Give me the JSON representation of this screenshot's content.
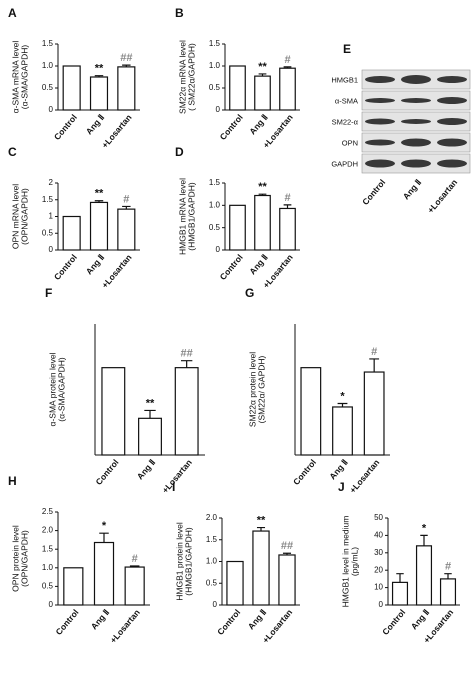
{
  "chart_data": [
    {
      "type": "bar",
      "panel": "A",
      "ylabel": [
        "α-SMA mRNA level",
        "(α-SMA/GAPDH)"
      ],
      "categories": [
        "Control",
        "Ang Ⅱ",
        "+Losartan"
      ],
      "values": [
        1.0,
        0.75,
        0.98
      ],
      "errors": [
        null,
        0.03,
        0.04
      ],
      "significance": [
        null,
        "**",
        "##"
      ],
      "significance_colors": [
        null,
        "#111111",
        "#888888"
      ],
      "color": "#ffffff",
      "ylim": [
        0,
        1.5
      ],
      "yticks": [
        0,
        0.5,
        {
          "value": 1,
          "label": "1.0"
        },
        1.5
      ]
    },
    {
      "type": "bar",
      "panel": "B",
      "ylabel": [
        "SM22α mRNA level",
        "( SM22α/GAPDH)"
      ],
      "categories": [
        "Control",
        "Ang Ⅱ",
        "+Losartan"
      ],
      "values": [
        1.0,
        0.77,
        0.95
      ],
      "errors": [
        null,
        0.05,
        0.03
      ],
      "significance": [
        null,
        "**",
        "#"
      ],
      "significance_colors": [
        null,
        "#111111",
        "#888888"
      ],
      "color": "#ffffff",
      "ylim": [
        0,
        1.5
      ],
      "yticks": [
        0,
        0.5,
        {
          "value": 1,
          "label": "1.0"
        },
        1.5
      ]
    },
    {
      "type": "bar",
      "panel": "C",
      "ylabel": [
        "OPN mRNA level",
        "(OPN/GAPDH)"
      ],
      "categories": [
        "Control",
        "Ang Ⅱ",
        "+Losartan"
      ],
      "values": [
        1.0,
        1.42,
        1.22
      ],
      "errors": [
        null,
        0.05,
        0.08
      ],
      "significance": [
        null,
        "**",
        "#"
      ],
      "significance_colors": [
        null,
        "#111111",
        "#888888"
      ],
      "color": "#ffffff",
      "ylim": [
        0,
        2
      ],
      "yticks": [
        0,
        0.5,
        1,
        1.5,
        2
      ]
    },
    {
      "type": "bar",
      "panel": "D",
      "ylabel": [
        "HMGB1 mRNA level",
        "(HMGB1/GAPDH)"
      ],
      "categories": [
        "Control",
        "Ang Ⅱ",
        "+Losartan"
      ],
      "values": [
        1.0,
        1.22,
        0.93
      ],
      "errors": [
        null,
        0.03,
        0.08
      ],
      "significance": [
        null,
        "**",
        "#"
      ],
      "significance_colors": [
        null,
        "#111111",
        "#888888"
      ],
      "color": "#ffffff",
      "ylim": [
        0,
        1.5
      ],
      "yticks": [
        0,
        0.5,
        {
          "value": 1,
          "label": "1.0"
        },
        1.5
      ]
    },
    {
      "type": "bar",
      "panel": "F",
      "ylabel": [
        "α-SMA protein level",
        "(α-SMA/GAPDH)"
      ],
      "categories": [
        "Control",
        "Ang Ⅱ",
        "+Losartan"
      ],
      "values": [
        1.0,
        0.42,
        1.0
      ],
      "errors": [
        null,
        0.09,
        0.08
      ],
      "significance": [
        null,
        "**",
        "##"
      ],
      "significance_colors": [
        null,
        "#111111",
        "#888888"
      ],
      "color": "#ffffff",
      "ylim": [
        0,
        1.5
      ]
    },
    {
      "type": "bar",
      "panel": "G",
      "ylabel": [
        "SM22α protein level",
        "(SM22α/ GAPDH)"
      ],
      "categories": [
        "Control",
        "Ang Ⅱ",
        "+Losartan"
      ],
      "values": [
        1.0,
        0.55,
        0.95
      ],
      "errors": [
        null,
        0.04,
        0.15
      ],
      "significance": [
        null,
        "*",
        "#"
      ],
      "significance_colors": [
        null,
        "#111111",
        "#888888"
      ],
      "color": "#ffffff",
      "ylim": [
        0,
        1.5
      ]
    },
    {
      "type": "bar",
      "panel": "H",
      "ylabel": [
        "OPN protein level",
        "(OPN/GAPDH)"
      ],
      "categories": [
        "Control",
        "Ang Ⅱ",
        "+Losartan"
      ],
      "values": [
        1.0,
        1.68,
        1.02
      ],
      "errors": [
        null,
        0.25,
        0.03
      ],
      "significance": [
        null,
        "*",
        "#"
      ],
      "significance_colors": [
        null,
        "#111111",
        "#888888"
      ],
      "color": "#ffffff",
      "ylim": [
        0,
        2.5
      ],
      "yticks": [
        0,
        0.5,
        {
          "value": 1,
          "label": "1.0"
        },
        1.5,
        {
          "value": 2,
          "label": "2.0"
        },
        2.5
      ]
    },
    {
      "type": "bar",
      "panel": "I",
      "ylabel": [
        "HMGB1 protein level",
        "(HMGB1/GAPDH)"
      ],
      "categories": [
        "Control",
        "Ang Ⅱ",
        "+Losartan"
      ],
      "values": [
        1.0,
        1.7,
        1.15
      ],
      "errors": [
        null,
        0.08,
        0.04
      ],
      "significance": [
        null,
        "**",
        "##"
      ],
      "significance_colors": [
        null,
        "#111111",
        "#888888"
      ],
      "color": "#ffffff",
      "ylim": [
        0,
        2
      ],
      "yticks": [
        0,
        0.5,
        {
          "value": 1,
          "label": "1.0"
        },
        1.5,
        {
          "value": 2,
          "label": "2.0"
        }
      ]
    },
    {
      "type": "bar",
      "panel": "J",
      "ylabel": [
        "HMGB1 level in medium",
        "(pg/mL)"
      ],
      "categories": [
        "Control",
        "Ang Ⅱ",
        "+Losartan"
      ],
      "values": [
        13,
        34,
        15
      ],
      "errors": [
        5,
        6,
        3
      ],
      "significance": [
        null,
        "*",
        "#"
      ],
      "significance_colors": [
        null,
        "#111111",
        "#888888"
      ],
      "color": "#ffffff",
      "ylim": [
        0,
        50
      ],
      "yticks": [
        0,
        10,
        20,
        30,
        40,
        50
      ]
    }
  ],
  "blot": {
    "panel": "E",
    "rows": [
      "HMGB1",
      "α-SMA",
      "SM22-α",
      "OPN",
      "GAPDH"
    ],
    "columns": [
      "Control",
      "Ang Ⅱ",
      "+Losartan"
    ]
  }
}
